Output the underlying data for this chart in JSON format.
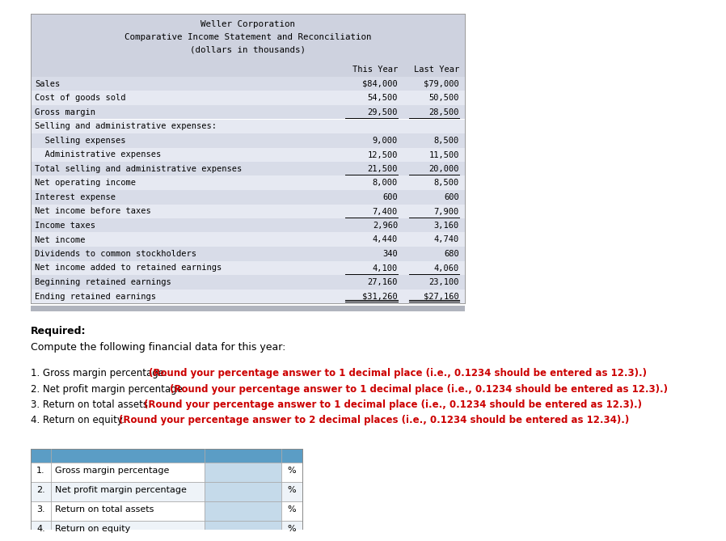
{
  "title_lines": [
    "Weller Corporation",
    "Comparative Income Statement and Reconciliation",
    "(dollars in thousands)"
  ],
  "income_rows": [
    [
      "Sales",
      "$84,000",
      "$79,000"
    ],
    [
      "Cost of goods sold",
      "54,500",
      "50,500"
    ],
    [
      "Gross margin",
      "29,500",
      "28,500"
    ],
    [
      "Selling and administrative expenses:",
      "",
      ""
    ],
    [
      "  Selling expenses",
      "9,000",
      "8,500"
    ],
    [
      "  Administrative expenses",
      "12,500",
      "11,500"
    ],
    [
      "Total selling and administrative expenses",
      "21,500",
      "20,000"
    ],
    [
      "Net operating income",
      "8,000",
      "8,500"
    ],
    [
      "Interest expense",
      "600",
      "600"
    ],
    [
      "Net income before taxes",
      "7,400",
      "7,900"
    ],
    [
      "Income taxes",
      "2,960",
      "3,160"
    ],
    [
      "Net income",
      "4,440",
      "4,740"
    ],
    [
      "Dividends to common stockholders",
      "340",
      "680"
    ],
    [
      "Net income added to retained earnings",
      "4,100",
      "4,060"
    ],
    [
      "Beginning retained earnings",
      "27,160",
      "23,100"
    ],
    [
      "Ending retained earnings",
      "$31,260",
      "$27,160"
    ]
  ],
  "numbered_items": [
    {
      "normal": "1. Gross margin percentage. ",
      "bold": "(Round your percentage answer to 1 decimal place (i.e., 0.1234 should be entered as 12.3).)"
    },
    {
      "normal": "2. Net profit margin percentage. ",
      "bold": "(Round your percentage answer to 1 decimal place (i.e., 0.1234 should be entered as 12.3).)"
    },
    {
      "normal": "3. Return on total assets. ",
      "bold": "(Round your percentage answer to 1 decimal place (i.e., 0.1234 should be entered as 12.3).)"
    },
    {
      "normal": "4. Return on equity. ",
      "bold": "(Round your percentage answer to 2 decimal places (i.e., 0.1234 should be entered as 12.34).)"
    }
  ],
  "answer_rows": [
    [
      "1.",
      "Gross margin percentage",
      "%"
    ],
    [
      "2.",
      "Net profit margin percentage",
      "%"
    ],
    [
      "3.",
      "Return on total assets",
      "%"
    ],
    [
      "4.",
      "Return on equity",
      "%"
    ]
  ],
  "header_bg": "#ced2df",
  "table_bg_even": "#e6e9f2",
  "table_bg_odd": "#d8dce8",
  "ans_header_bg": "#5b9dc5",
  "ans_input_bg": "#c5daea",
  "ans_row_bg": "#ffffff",
  "ans_alt_bg": "#eef3f8",
  "bottom_bar_color": "#b0b4be"
}
